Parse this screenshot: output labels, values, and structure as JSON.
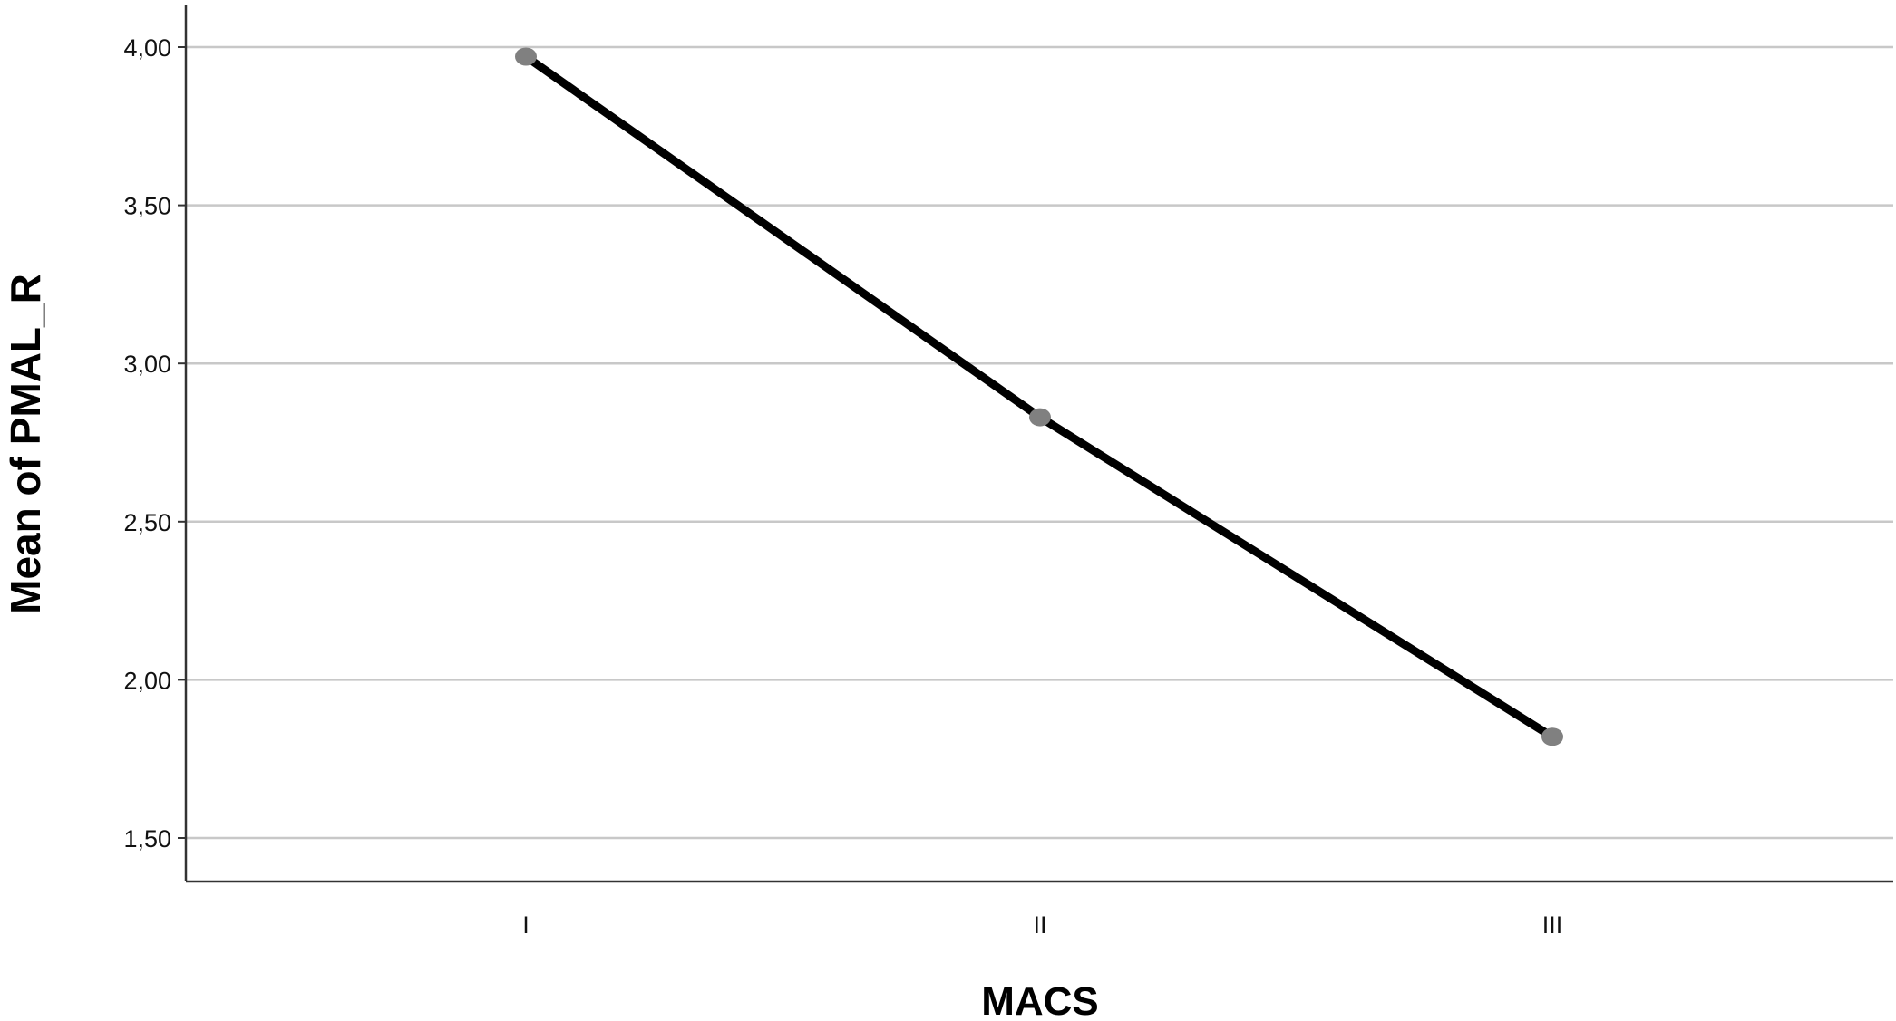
{
  "chart_data": {
    "type": "line",
    "categories": [
      "I",
      "II",
      "III"
    ],
    "series": [
      {
        "values": [
          3.97,
          2.83,
          1.82
        ]
      }
    ],
    "xlabel": "MACS",
    "ylabel": "Mean of PMAL_R",
    "ylim": [
      1.39,
      4.1
    ],
    "yticks": [
      "1,50",
      "2,00",
      "2,50",
      "3,00",
      "3,50",
      "4,00"
    ],
    "ytick_values": [
      1.5,
      2.0,
      2.5,
      3.0,
      3.5,
      4.0
    ],
    "grid": "horizontal",
    "legend": "none",
    "colors": {
      "line": "#000000",
      "marker": "#808080",
      "grid": "#c8c8c8",
      "axis": "#333333"
    }
  }
}
